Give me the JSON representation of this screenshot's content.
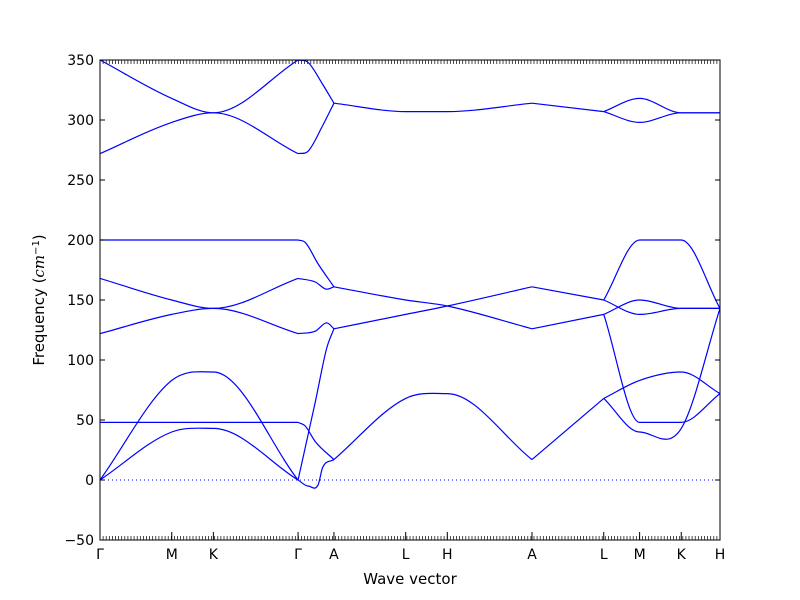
{
  "chart_data": {
    "type": "line",
    "title": "",
    "xlabel": "Wave vector",
    "ylabel_prefix": "Frequency (",
    "ylabel_unit": "cm",
    "ylabel_exp": "−1",
    "ylabel_suffix": ")",
    "ylim": [
      -50,
      350
    ],
    "yticks": [
      -50,
      0,
      50,
      100,
      150,
      200,
      250,
      300,
      350
    ],
    "xlim": [
      0,
      4.32
    ],
    "xticks": [
      {
        "pos": 0.0,
        "label": "Γ"
      },
      {
        "pos": 0.5,
        "label": "M"
      },
      {
        "pos": 0.79,
        "label": "K"
      },
      {
        "pos": 1.38,
        "label": "Γ"
      },
      {
        "pos": 1.63,
        "label": "A"
      },
      {
        "pos": 2.13,
        "label": "L"
      },
      {
        "pos": 2.42,
        "label": "H"
      },
      {
        "pos": 3.01,
        "label": "A"
      },
      {
        "pos": 3.51,
        "label": "L"
      },
      {
        "pos": 3.76,
        "label": "M"
      },
      {
        "pos": 4.05,
        "label": "K"
      },
      {
        "pos": 4.32,
        "label": "H"
      }
    ],
    "zero_line": {
      "y": 0,
      "style": "dotted"
    },
    "line_color": "#0000ff",
    "grid": false,
    "series": [
      {
        "x": [
          0,
          0.5,
          0.79,
          1.38
        ],
        "y": [
          0,
          83,
          90,
          0
        ]
      },
      {
        "x": [
          0,
          0.5,
          0.79,
          1.38
        ],
        "y": [
          0,
          40,
          43,
          0
        ]
      },
      {
        "x": [
          0,
          0.5,
          0.79,
          1.38
        ],
        "y": [
          48,
          48,
          48,
          48
        ]
      },
      {
        "x": [
          0,
          0.5,
          0.79,
          1.38
        ],
        "y": [
          122,
          138,
          143,
          122
        ]
      },
      {
        "x": [
          0,
          0.5,
          0.79,
          1.38
        ],
        "y": [
          168,
          150,
          143,
          168
        ]
      },
      {
        "x": [
          0,
          0.5,
          0.79,
          1.38
        ],
        "y": [
          200,
          200,
          200,
          200
        ]
      },
      {
        "x": [
          0,
          0.5,
          0.79,
          1.38
        ],
        "y": [
          272,
          298,
          306,
          272
        ]
      },
      {
        "x": [
          0,
          0.5,
          0.79,
          1.38
        ],
        "y": [
          350,
          318,
          306,
          350
        ]
      },
      {
        "x": [
          1.38,
          1.45,
          1.52,
          1.55,
          1.63
        ],
        "y": [
          0,
          -5,
          -4,
          10,
          17
        ]
      },
      {
        "x": [
          1.38,
          1.43,
          1.5,
          1.63
        ],
        "y": [
          48,
          45,
          32,
          17
        ]
      },
      {
        "x": [
          1.38,
          1.5,
          1.58,
          1.63
        ],
        "y": [
          0,
          65,
          110,
          126
        ]
      },
      {
        "x": [
          1.38,
          1.5,
          1.58,
          1.63
        ],
        "y": [
          122,
          124,
          131,
          126
        ]
      },
      {
        "x": [
          1.38,
          1.5,
          1.58,
          1.63
        ],
        "y": [
          168,
          165,
          159,
          161
        ]
      },
      {
        "x": [
          1.38,
          1.43,
          1.52,
          1.63
        ],
        "y": [
          200,
          198,
          180,
          161
        ]
      },
      {
        "x": [
          1.38,
          1.45,
          1.55,
          1.63
        ],
        "y": [
          272,
          274,
          295,
          314
        ]
      },
      {
        "x": [
          1.38,
          1.45,
          1.55,
          1.63
        ],
        "y": [
          350,
          348,
          330,
          314
        ]
      },
      {
        "x": [
          1.63,
          2.13,
          2.42,
          3.01
        ],
        "y": [
          17,
          68,
          72,
          17
        ]
      },
      {
        "x": [
          1.63,
          2.13,
          2.42,
          3.01
        ],
        "y": [
          126,
          138,
          145,
          161
        ]
      },
      {
        "x": [
          1.63,
          2.13,
          2.42,
          3.01
        ],
        "y": [
          161,
          150,
          145,
          126
        ]
      },
      {
        "x": [
          1.63,
          2.13,
          2.42,
          3.01
        ],
        "y": [
          314,
          307,
          307,
          314
        ]
      },
      {
        "x": [
          3.01,
          3.51
        ],
        "y": [
          17,
          68
        ]
      },
      {
        "x": [
          3.01,
          3.51
        ],
        "y": [
          126,
          138
        ]
      },
      {
        "x": [
          3.01,
          3.51
        ],
        "y": [
          161,
          150
        ]
      },
      {
        "x": [
          3.01,
          3.51
        ],
        "y": [
          314,
          307
        ]
      },
      {
        "x": [
          3.51,
          3.76,
          4.05,
          4.32
        ],
        "y": [
          68,
          83,
          90,
          72
        ]
      },
      {
        "x": [
          3.51,
          3.76,
          4.05,
          4.32
        ],
        "y": [
          68,
          40,
          43,
          143
        ]
      },
      {
        "x": [
          3.51,
          3.76,
          4.05,
          4.32
        ],
        "y": [
          138,
          48,
          48,
          72
        ]
      },
      {
        "x": [
          3.51,
          3.76,
          4.05,
          4.32
        ],
        "y": [
          138,
          150,
          143,
          143
        ]
      },
      {
        "x": [
          3.51,
          3.76,
          4.05,
          4.32
        ],
        "y": [
          150,
          138,
          143,
          143
        ]
      },
      {
        "x": [
          3.51,
          3.76,
          4.05,
          4.32
        ],
        "y": [
          150,
          200,
          200,
          143
        ]
      },
      {
        "x": [
          3.51,
          3.76,
          4.05,
          4.32
        ],
        "y": [
          307,
          318,
          306,
          306
        ]
      },
      {
        "x": [
          3.51,
          3.76,
          4.05,
          4.32
        ],
        "y": [
          307,
          298,
          306,
          306
        ]
      }
    ]
  }
}
